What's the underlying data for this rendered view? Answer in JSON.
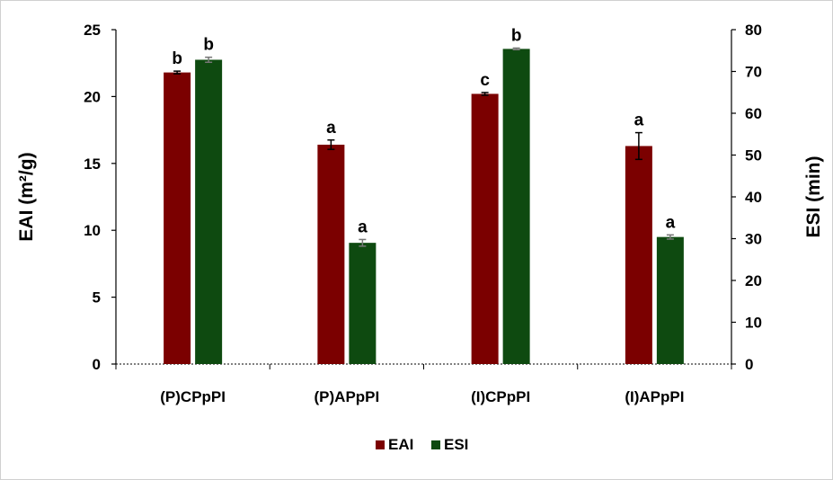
{
  "chart_data": {
    "type": "bar",
    "categories": [
      "(P)CPpPI",
      "(P)APpPI",
      "(I)CPpPI",
      "(I)APpPI"
    ],
    "series": [
      {
        "name": "EAI",
        "axis": "left",
        "color": "#7b0000",
        "values": [
          21.8,
          16.4,
          20.2,
          16.3
        ],
        "errors": [
          0.1,
          0.35,
          0.1,
          1.0
        ],
        "letters": [
          "b",
          "a",
          "c",
          "a"
        ]
      },
      {
        "name": "ESI",
        "axis": "right",
        "color": "#0e4a10",
        "values": [
          72.8,
          29.0,
          75.4,
          30.4
        ],
        "errors": [
          0.6,
          0.8,
          0.2,
          0.5
        ],
        "letters": [
          "b",
          "a",
          "b",
          "a"
        ]
      }
    ],
    "y_left": {
      "label": "EAI (m²/g)",
      "min": 0,
      "max": 25,
      "ticks": [
        0,
        5,
        10,
        15,
        20,
        25
      ]
    },
    "y_right": {
      "label": "ESI  (min)",
      "min": 0,
      "max": 80,
      "ticks": [
        0,
        10,
        20,
        30,
        40,
        50,
        60,
        70,
        80
      ]
    },
    "legend": {
      "position": "bottom",
      "entries": [
        "EAI",
        "ESI"
      ]
    },
    "grid": false
  }
}
